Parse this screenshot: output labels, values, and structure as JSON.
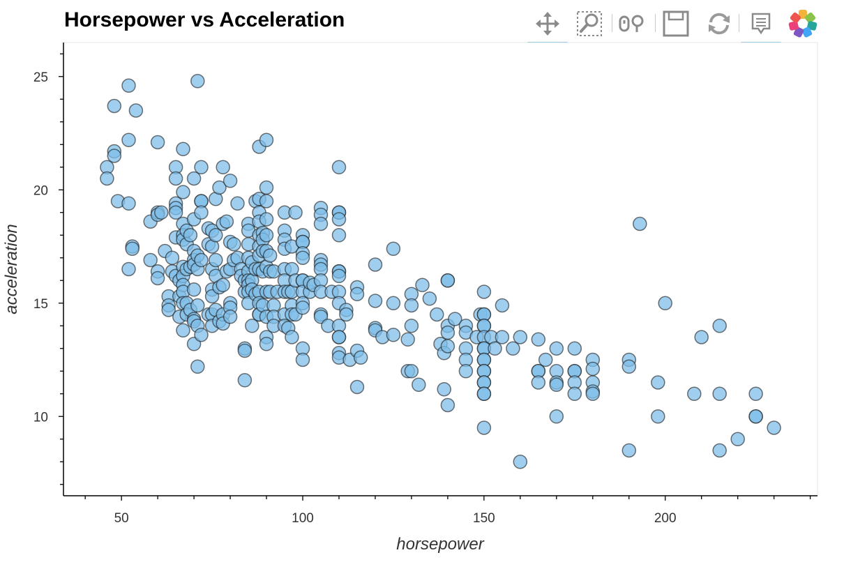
{
  "title": "Horsepower vs Acceleration",
  "toolbar": {
    "tools": [
      {
        "name": "pan-icon",
        "active": true
      },
      {
        "name": "box-zoom-icon",
        "active": false
      },
      {
        "name": "wheel-zoom-icon",
        "active": false
      },
      {
        "name": "save-icon",
        "active": false
      },
      {
        "name": "reset-icon",
        "active": false
      },
      {
        "name": "hover-icon",
        "active": true
      },
      {
        "name": "bokeh-logo-icon",
        "active": false
      }
    ]
  },
  "colors": {
    "point_fill": "#7fbde8",
    "point_stroke": "#1a1a1a",
    "active_tool": "#5aaee0",
    "frame": "#e5e5e5"
  },
  "chart_data": {
    "type": "scatter",
    "title": "Horsepower vs Acceleration",
    "xlabel": "horsepower",
    "ylabel": "acceleration",
    "xlim": [
      34,
      242
    ],
    "ylim": [
      6.5,
      26.5
    ],
    "xticks": [
      50,
      100,
      150,
      200
    ],
    "yticks": [
      10,
      15,
      20,
      25
    ],
    "grid": false,
    "legend": "none",
    "points": [
      [
        46,
        21
      ],
      [
        46,
        20.5
      ],
      [
        48,
        23.7
      ],
      [
        48,
        21.7
      ],
      [
        48,
        21.5
      ],
      [
        49,
        19.5
      ],
      [
        52,
        24.6
      ],
      [
        52,
        22.2
      ],
      [
        52,
        19.4
      ],
      [
        52,
        16.5
      ],
      [
        53,
        17.5
      ],
      [
        53,
        17.4
      ],
      [
        54,
        23.5
      ],
      [
        58,
        18.6
      ],
      [
        58,
        16.9
      ],
      [
        60,
        22.1
      ],
      [
        60,
        19
      ],
      [
        60,
        18.9
      ],
      [
        60,
        16.4
      ],
      [
        60,
        16.1
      ],
      [
        61,
        19
      ],
      [
        62,
        17.3
      ],
      [
        63,
        15.3
      ],
      [
        63,
        14.9
      ],
      [
        63,
        14.7
      ],
      [
        64,
        17
      ],
      [
        64,
        16.4
      ],
      [
        65,
        21
      ],
      [
        65,
        20.5
      ],
      [
        65,
        19.4
      ],
      [
        65,
        19.2
      ],
      [
        65,
        19
      ],
      [
        65,
        17.9
      ],
      [
        65,
        16.2
      ],
      [
        66,
        16
      ],
      [
        66,
        15.3
      ],
      [
        66,
        14.4
      ],
      [
        67,
        21.8
      ],
      [
        67,
        19.9
      ],
      [
        67,
        18.5
      ],
      [
        67,
        18
      ],
      [
        67,
        17.8
      ],
      [
        67,
        16.6
      ],
      [
        67,
        16.2
      ],
      [
        67,
        15.8
      ],
      [
        67,
        15.5
      ],
      [
        67,
        15
      ],
      [
        67,
        13.8
      ],
      [
        68,
        18.2
      ],
      [
        68,
        17.6
      ],
      [
        68,
        16.5
      ],
      [
        68,
        15
      ],
      [
        68,
        14.5
      ],
      [
        69,
        18
      ],
      [
        69,
        16.6
      ],
      [
        69,
        14.7
      ],
      [
        70,
        20.5
      ],
      [
        70,
        18.7
      ],
      [
        70,
        17.3
      ],
      [
        70,
        16.9
      ],
      [
        70,
        16.7
      ],
      [
        70,
        15.6
      ],
      [
        70,
        14.3
      ],
      [
        70,
        14.2
      ],
      [
        70,
        13.2
      ],
      [
        71,
        24.8
      ],
      [
        71,
        17.1
      ],
      [
        71,
        16.5
      ],
      [
        71,
        14.9
      ],
      [
        71,
        14
      ],
      [
        71,
        12.2
      ],
      [
        72,
        21
      ],
      [
        72,
        19.5
      ],
      [
        72,
        19.5
      ],
      [
        72,
        19
      ],
      [
        72,
        16.9
      ],
      [
        72,
        13.6
      ],
      [
        74,
        18.3
      ],
      [
        74,
        17.6
      ],
      [
        74,
        14.5
      ],
      [
        75,
        18.2
      ],
      [
        75,
        17.5
      ],
      [
        75,
        16.5
      ],
      [
        75,
        15.6
      ],
      [
        75,
        15.3
      ],
      [
        75,
        14.5
      ],
      [
        75,
        14
      ],
      [
        76,
        19.6
      ],
      [
        76,
        18
      ],
      [
        76,
        16.9
      ],
      [
        76,
        16.2
      ],
      [
        76,
        14.7
      ],
      [
        77,
        20.1
      ],
      [
        77,
        15.7
      ],
      [
        77,
        14.2
      ],
      [
        78,
        21
      ],
      [
        78,
        18.5
      ],
      [
        78,
        15.8
      ],
      [
        78,
        14.5
      ],
      [
        78,
        14.1
      ],
      [
        79,
        18.6
      ],
      [
        79,
        16.4
      ],
      [
        80,
        20.4
      ],
      [
        80,
        17.7
      ],
      [
        80,
        16.5
      ],
      [
        80,
        15
      ],
      [
        80,
        14.8
      ],
      [
        80,
        14.4
      ],
      [
        81,
        16.9
      ],
      [
        81,
        17.6
      ],
      [
        82,
        19.4
      ],
      [
        82,
        17
      ],
      [
        83,
        16.5
      ],
      [
        83,
        16.2
      ],
      [
        84,
        16
      ],
      [
        84,
        15.5
      ],
      [
        84,
        13
      ],
      [
        84,
        12.9
      ],
      [
        84,
        11.6
      ],
      [
        85,
        18.5
      ],
      [
        85,
        18.2
      ],
      [
        85,
        17.6
      ],
      [
        85,
        17
      ],
      [
        85,
        16.4
      ],
      [
        85,
        16
      ],
      [
        85,
        15.8
      ],
      [
        85,
        15.5
      ],
      [
        85,
        15
      ],
      [
        86,
        16.8
      ],
      [
        86,
        16
      ],
      [
        86,
        15.6
      ],
      [
        86,
        14
      ],
      [
        87,
        19.5
      ],
      [
        87,
        16.5
      ],
      [
        87,
        15.4
      ],
      [
        88,
        21.9
      ],
      [
        88,
        19.6
      ],
      [
        88,
        19
      ],
      [
        88,
        18.6
      ],
      [
        88,
        18
      ],
      [
        88,
        17.5
      ],
      [
        88,
        17.1
      ],
      [
        88,
        16.5
      ],
      [
        88,
        15.5
      ],
      [
        88,
        15
      ],
      [
        88,
        14.5
      ],
      [
        88,
        14.5
      ],
      [
        89,
        18.1
      ],
      [
        89,
        17.8
      ],
      [
        89,
        17.3
      ],
      [
        89,
        16.4
      ],
      [
        89,
        14.9
      ],
      [
        90,
        22.2
      ],
      [
        90,
        20.1
      ],
      [
        90,
        19.5
      ],
      [
        90,
        18.7
      ],
      [
        90,
        18
      ],
      [
        90,
        17.3
      ],
      [
        90,
        16.6
      ],
      [
        90,
        15.5
      ],
      [
        90,
        14.4
      ],
      [
        90,
        13.5
      ],
      [
        90,
        13.2
      ],
      [
        91,
        17.1
      ],
      [
        91,
        16.4
      ],
      [
        91,
        15.5
      ],
      [
        92,
        16.4
      ],
      [
        92,
        14.9
      ],
      [
        92,
        14.4
      ],
      [
        92,
        14
      ],
      [
        93,
        15.5
      ],
      [
        95,
        19
      ],
      [
        95,
        18.2
      ],
      [
        95,
        17.8
      ],
      [
        95,
        17.4
      ],
      [
        95,
        16.5
      ],
      [
        95,
        16
      ],
      [
        95,
        15.5
      ],
      [
        95,
        14.5
      ],
      [
        95,
        14
      ],
      [
        96,
        15.5
      ],
      [
        96,
        13.9
      ],
      [
        97,
        17.5
      ],
      [
        97,
        16.5
      ],
      [
        97,
        15.5
      ],
      [
        97,
        14.9
      ],
      [
        97,
        14.5
      ],
      [
        97,
        13.5
      ],
      [
        98,
        19
      ],
      [
        98,
        16
      ],
      [
        98,
        14.5
      ],
      [
        100,
        18
      ],
      [
        100,
        17.7
      ],
      [
        100,
        17.7
      ],
      [
        100,
        17.2
      ],
      [
        100,
        17
      ],
      [
        100,
        16
      ],
      [
        100,
        16
      ],
      [
        100,
        15.5
      ],
      [
        100,
        15
      ],
      [
        100,
        14.8
      ],
      [
        100,
        13
      ],
      [
        100,
        12.5
      ],
      [
        102,
        15.5
      ],
      [
        102,
        15.9
      ],
      [
        103,
        15.8
      ],
      [
        105,
        19.2
      ],
      [
        105,
        18.9
      ],
      [
        105,
        18.5
      ],
      [
        105,
        16.9
      ],
      [
        105,
        16.7
      ],
      [
        105,
        16.5
      ],
      [
        105,
        16
      ],
      [
        105,
        15.5
      ],
      [
        105,
        14.5
      ],
      [
        105,
        14.4
      ],
      [
        107,
        14
      ],
      [
        108,
        15.5
      ],
      [
        110,
        21
      ],
      [
        110,
        19
      ],
      [
        110,
        19
      ],
      [
        110,
        18.7
      ],
      [
        110,
        18
      ],
      [
        110,
        16.4
      ],
      [
        110,
        16.4
      ],
      [
        110,
        16.2
      ],
      [
        110,
        15.5
      ],
      [
        110,
        15
      ],
      [
        110,
        14
      ],
      [
        110,
        13.5
      ],
      [
        110,
        13.5
      ],
      [
        110,
        12.8
      ],
      [
        110,
        12.6
      ],
      [
        112,
        14.7
      ],
      [
        112,
        14.5
      ],
      [
        113,
        12.5
      ],
      [
        115,
        15.7
      ],
      [
        115,
        15.4
      ],
      [
        115,
        12.9
      ],
      [
        115,
        11.3
      ],
      [
        116,
        12.6
      ],
      [
        120,
        16.7
      ],
      [
        120,
        15.1
      ],
      [
        120,
        13.9
      ],
      [
        120,
        13.8
      ],
      [
        122,
        13.5
      ],
      [
        125,
        17.4
      ],
      [
        125,
        15
      ],
      [
        125,
        13.6
      ],
      [
        129,
        13.4
      ],
      [
        129,
        12
      ],
      [
        130,
        15.4
      ],
      [
        130,
        14.9
      ],
      [
        130,
        14
      ],
      [
        130,
        12
      ],
      [
        132,
        11.4
      ],
      [
        133,
        15.8
      ],
      [
        135,
        15.2
      ],
      [
        137,
        14.5
      ],
      [
        138,
        13.2
      ],
      [
        139,
        12.8
      ],
      [
        139,
        11.2
      ],
      [
        140,
        16
      ],
      [
        140,
        16
      ],
      [
        140,
        14
      ],
      [
        140,
        13.7
      ],
      [
        140,
        13.1
      ],
      [
        140,
        10.5
      ],
      [
        142,
        14.3
      ],
      [
        145,
        14
      ],
      [
        145,
        13.7
      ],
      [
        145,
        13
      ],
      [
        145,
        12.5
      ],
      [
        145,
        12
      ],
      [
        148,
        13.5
      ],
      [
        149,
        14.5
      ],
      [
        150,
        15.5
      ],
      [
        150,
        14.5
      ],
      [
        150,
        14.5
      ],
      [
        150,
        14
      ],
      [
        150,
        14
      ],
      [
        150,
        13.5
      ],
      [
        150,
        13
      ],
      [
        150,
        13
      ],
      [
        150,
        12.5
      ],
      [
        150,
        12.5
      ],
      [
        150,
        12
      ],
      [
        150,
        12
      ],
      [
        150,
        11.5
      ],
      [
        150,
        11.5
      ],
      [
        150,
        11
      ],
      [
        150,
        11
      ],
      [
        150,
        9.5
      ],
      [
        152,
        13.5
      ],
      [
        153,
        13
      ],
      [
        155,
        14.9
      ],
      [
        155,
        13.5
      ],
      [
        158,
        13
      ],
      [
        160,
        13.5
      ],
      [
        160,
        8
      ],
      [
        165,
        13.4
      ],
      [
        165,
        12
      ],
      [
        165,
        12
      ],
      [
        165,
        11.5
      ],
      [
        167,
        12.5
      ],
      [
        170,
        13
      ],
      [
        170,
        12
      ],
      [
        170,
        11.5
      ],
      [
        170,
        11.4
      ],
      [
        170,
        10
      ],
      [
        175,
        13
      ],
      [
        175,
        12
      ],
      [
        175,
        12
      ],
      [
        175,
        11.5
      ],
      [
        175,
        11
      ],
      [
        180,
        12.5
      ],
      [
        180,
        12.1
      ],
      [
        180,
        11.5
      ],
      [
        180,
        11.1
      ],
      [
        180,
        11
      ],
      [
        190,
        12.5
      ],
      [
        190,
        12.2
      ],
      [
        190,
        8.5
      ],
      [
        193,
        18.5
      ],
      [
        198,
        11.5
      ],
      [
        198,
        10
      ],
      [
        200,
        15
      ],
      [
        208,
        11
      ],
      [
        210,
        13.5
      ],
      [
        215,
        14
      ],
      [
        215,
        11
      ],
      [
        215,
        8.5
      ],
      [
        220,
        9
      ],
      [
        225,
        11
      ],
      [
        225,
        10
      ],
      [
        225,
        10
      ],
      [
        230,
        9.5
      ]
    ]
  }
}
